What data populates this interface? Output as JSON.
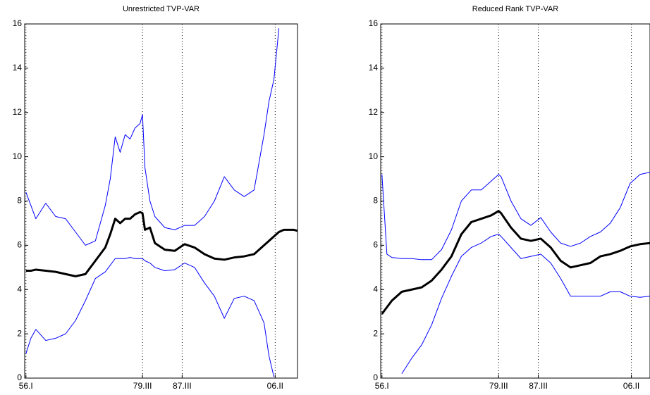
{
  "chart_data": [
    {
      "type": "line",
      "title": "Unrestricted TVP-VAR",
      "x": [
        1956,
        1957,
        1958,
        1960,
        1962,
        1964,
        1966,
        1968,
        1970,
        1972,
        1973,
        1974,
        1975,
        1976,
        1977,
        1978,
        1979,
        1979.5,
        1980,
        1981,
        1982,
        1984,
        1986,
        1988,
        1990,
        1992,
        1994,
        1996,
        1998,
        2000,
        2002,
        2004,
        2005,
        2006,
        2007,
        2008,
        2010,
        2010.75
      ],
      "series": [
        {
          "color": "#0000ff",
          "width": 1,
          "values": [
            8.4,
            7.8,
            7.2,
            7.9,
            7.3,
            7.2,
            6.6,
            6.0,
            6.2,
            7.8,
            9.0,
            10.9,
            10.2,
            11.0,
            10.8,
            11.3,
            11.5,
            11.9,
            9.5,
            8.0,
            7.3,
            6.8,
            6.7,
            6.9,
            6.9,
            7.3,
            8.0,
            9.1,
            8.5,
            8.2,
            8.5,
            11.0,
            12.5,
            13.5,
            15.8,
            null,
            null,
            null
          ]
        },
        {
          "color": "#000000",
          "width": 3,
          "values": [
            4.85,
            4.85,
            4.9,
            4.85,
            4.8,
            4.7,
            4.6,
            4.7,
            5.3,
            5.9,
            6.5,
            7.2,
            7.0,
            7.2,
            7.2,
            7.4,
            7.5,
            7.45,
            6.7,
            6.8,
            6.1,
            5.8,
            5.75,
            6.05,
            5.9,
            5.6,
            5.4,
            5.35,
            5.45,
            5.5,
            5.6,
            6.0,
            6.2,
            6.4,
            6.6,
            6.7,
            6.7,
            6.65
          ]
        },
        {
          "color": "#0000ff",
          "width": 1,
          "values": [
            1.1,
            1.8,
            2.2,
            1.7,
            1.8,
            2.0,
            2.6,
            3.5,
            4.5,
            4.8,
            5.1,
            5.4,
            5.4,
            5.4,
            5.45,
            5.4,
            5.4,
            5.4,
            5.3,
            5.2,
            5.0,
            4.85,
            4.9,
            5.2,
            5.0,
            4.3,
            3.7,
            2.7,
            3.6,
            3.7,
            3.5,
            2.5,
            1.0,
            0.05,
            null,
            null,
            null,
            null
          ]
        }
      ],
      "xlim": [
        1955.75,
        2010.75
      ],
      "xticks": [
        {
          "value": 1956,
          "label": "56.I"
        },
        {
          "value": 1979.5,
          "label": "79.III"
        },
        {
          "value": 1987.5,
          "label": "87.III"
        },
        {
          "value": 2006.25,
          "label": "06.II"
        }
      ],
      "ylim": [
        0,
        16
      ],
      "yticks": [
        0,
        2,
        4,
        6,
        8,
        10,
        12,
        14,
        16
      ],
      "grid": "x"
    },
    {
      "type": "line",
      "title": "Reduced Rank TVP-VAR",
      "x": [
        1956,
        1957,
        1958,
        1960,
        1962,
        1964,
        1966,
        1968,
        1970,
        1972,
        1974,
        1976,
        1978,
        1979.5,
        1980,
        1982,
        1984,
        1986,
        1988,
        1990,
        1992,
        1994,
        1996,
        1998,
        2000,
        2002,
        2004,
        2006,
        2008,
        2010
      ],
      "series": [
        {
          "color": "#0000ff",
          "width": 1,
          "values": [
            9.2,
            5.6,
            5.45,
            5.4,
            5.4,
            5.35,
            5.35,
            5.8,
            6.7,
            8.0,
            8.5,
            8.5,
            8.9,
            9.2,
            9.1,
            8.0,
            7.2,
            6.9,
            7.25,
            6.6,
            6.1,
            5.95,
            6.1,
            6.4,
            6.6,
            7.0,
            7.7,
            8.8,
            9.2,
            9.3
          ]
        },
        {
          "color": "#000000",
          "width": 3,
          "values": [
            2.9,
            3.2,
            3.5,
            3.9,
            4.0,
            4.1,
            4.4,
            4.9,
            5.5,
            6.5,
            7.05,
            7.2,
            7.35,
            7.55,
            7.45,
            6.8,
            6.3,
            6.2,
            6.3,
            5.9,
            5.3,
            5.0,
            5.1,
            5.2,
            5.5,
            5.6,
            5.75,
            5.95,
            6.05,
            6.1
          ]
        },
        {
          "color": "#0000ff",
          "width": 1,
          "values": [
            null,
            null,
            null,
            0.2,
            0.9,
            1.5,
            2.4,
            3.6,
            4.6,
            5.5,
            5.9,
            6.1,
            6.4,
            6.5,
            6.4,
            5.9,
            5.4,
            5.5,
            5.6,
            5.2,
            4.5,
            3.7,
            3.7,
            3.7,
            3.7,
            3.9,
            3.9,
            3.7,
            3.65,
            3.7
          ]
        }
      ],
      "xlim": [
        1955.75,
        2010
      ],
      "xticks": [
        {
          "value": 1956,
          "label": "56.I"
        },
        {
          "value": 1979.5,
          "label": "79.III"
        },
        {
          "value": 1987.5,
          "label": "87.III"
        },
        {
          "value": 2006.25,
          "label": "06.II"
        }
      ],
      "ylim": [
        0,
        16
      ],
      "yticks": [
        0,
        2,
        4,
        6,
        8,
        10,
        12,
        14,
        16
      ],
      "grid": "x"
    }
  ]
}
